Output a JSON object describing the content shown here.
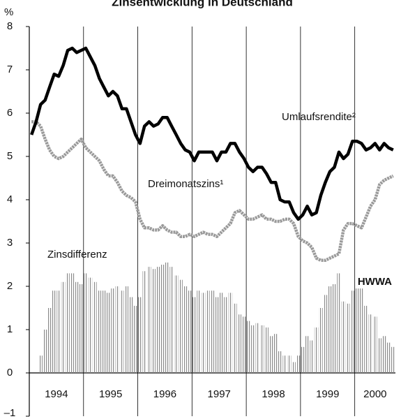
{
  "chart_data": {
    "type": "line",
    "title": "Zinsentwicklung in Deutschland",
    "y_label": "%",
    "watermark": "HWWA",
    "x": [
      1994,
      1994.083,
      1994.167,
      1994.25,
      1994.333,
      1994.417,
      1994.5,
      1994.583,
      1994.667,
      1994.75,
      1994.833,
      1994.917,
      1995,
      1995.083,
      1995.167,
      1995.25,
      1995.333,
      1995.417,
      1995.5,
      1995.583,
      1995.667,
      1995.75,
      1995.833,
      1995.917,
      1996,
      1996.083,
      1996.167,
      1996.25,
      1996.333,
      1996.417,
      1996.5,
      1996.583,
      1996.667,
      1996.75,
      1996.833,
      1996.917,
      1997,
      1997.083,
      1997.167,
      1997.25,
      1997.333,
      1997.417,
      1997.5,
      1997.583,
      1997.667,
      1997.75,
      1997.833,
      1997.917,
      1998,
      1998.083,
      1998.167,
      1998.25,
      1998.333,
      1998.417,
      1998.5,
      1998.583,
      1998.667,
      1998.75,
      1998.833,
      1998.917,
      1999,
      1999.083,
      1999.167,
      1999.25,
      1999.333,
      1999.417,
      1999.5,
      1999.583,
      1999.667,
      1999.75,
      1999.833,
      1999.917,
      2000,
      2000.083,
      2000.167,
      2000.25,
      2000.333,
      2000.417,
      2000.5,
      2000.583,
      2000.667
    ],
    "series": [
      {
        "name": "Zinsdifferenz",
        "type": "bar",
        "color": "#8a8a8a",
        "values": [
          0,
          0,
          0.4,
          1.0,
          1.5,
          1.9,
          1.9,
          2.1,
          2.3,
          2.3,
          2.1,
          2.05,
          2.3,
          2.2,
          2.1,
          1.9,
          1.9,
          1.85,
          1.95,
          2.0,
          1.9,
          2.0,
          1.75,
          1.55,
          1.75,
          2.35,
          2.45,
          2.4,
          2.45,
          2.5,
          2.55,
          2.45,
          2.25,
          2.15,
          2.0,
          1.9,
          1.75,
          1.9,
          1.85,
          1.9,
          1.9,
          1.75,
          1.85,
          1.75,
          1.85,
          1.6,
          1.35,
          1.3,
          1.2,
          1.1,
          1.15,
          1.1,
          1.05,
          0.85,
          0.9,
          0.5,
          0.4,
          0.4,
          0.25,
          0.4,
          0.6,
          0.85,
          0.75,
          1.05,
          1.5,
          1.8,
          2.0,
          2.05,
          2.3,
          1.65,
          1.6,
          1.9,
          1.95,
          1.95,
          1.55,
          1.35,
          1.3,
          0.8,
          0.85,
          0.7,
          0.6
        ]
      },
      {
        "name": "Dreimonatszins¹",
        "type": "line",
        "color": "#9a9a9a",
        "values": [
          5.8,
          5.8,
          5.7,
          5.4,
          5.15,
          5.0,
          4.95,
          5.0,
          5.1,
          5.2,
          5.3,
          5.4,
          5.2,
          5.1,
          5.0,
          4.9,
          4.7,
          4.55,
          4.55,
          4.4,
          4.2,
          4.1,
          4.05,
          3.95,
          3.55,
          3.35,
          3.35,
          3.3,
          3.3,
          3.4,
          3.3,
          3.25,
          3.25,
          3.15,
          3.15,
          3.2,
          3.15,
          3.2,
          3.25,
          3.2,
          3.2,
          3.15,
          3.25,
          3.35,
          3.45,
          3.7,
          3.75,
          3.65,
          3.55,
          3.55,
          3.6,
          3.65,
          3.55,
          3.55,
          3.5,
          3.5,
          3.55,
          3.55,
          3.45,
          3.15,
          3.05,
          3.0,
          2.9,
          2.65,
          2.6,
          2.6,
          2.65,
          2.7,
          2.75,
          3.3,
          3.45,
          3.45,
          3.4,
          3.35,
          3.6,
          3.85,
          4.0,
          4.35,
          4.45,
          4.5,
          4.55
        ]
      },
      {
        "name": "Umlaufsrendite²",
        "type": "line",
        "color": "#000000",
        "values": [
          5.5,
          5.8,
          6.2,
          6.3,
          6.6,
          6.9,
          6.85,
          7.1,
          7.45,
          7.5,
          7.4,
          7.45,
          7.5,
          7.3,
          7.1,
          6.8,
          6.6,
          6.4,
          6.5,
          6.4,
          6.1,
          6.1,
          5.8,
          5.5,
          5.3,
          5.7,
          5.8,
          5.7,
          5.75,
          5.9,
          5.9,
          5.7,
          5.5,
          5.3,
          5.15,
          5.1,
          4.9,
          5.1,
          5.1,
          5.1,
          5.1,
          4.9,
          5.1,
          5.1,
          5.3,
          5.3,
          5.1,
          4.95,
          4.75,
          4.65,
          4.75,
          4.75,
          4.6,
          4.4,
          4.4,
          4.0,
          3.95,
          3.95,
          3.7,
          3.55,
          3.65,
          3.85,
          3.65,
          3.7,
          4.1,
          4.4,
          4.65,
          4.75,
          5.1,
          4.95,
          5.05,
          5.35,
          5.35,
          5.3,
          5.15,
          5.2,
          5.3,
          5.15,
          5.3,
          5.2,
          5.15
        ]
      }
    ],
    "xlim": [
      1994,
      2000.75
    ],
    "xticks": [
      1994,
      1995,
      1996,
      1997,
      1998,
      1999,
      2000
    ],
    "ylim": [
      -1,
      8
    ],
    "yticks": [
      {
        "value": -1,
        "label": "–1"
      },
      0,
      1,
      2,
      3,
      4,
      5,
      6,
      7,
      8
    ]
  }
}
